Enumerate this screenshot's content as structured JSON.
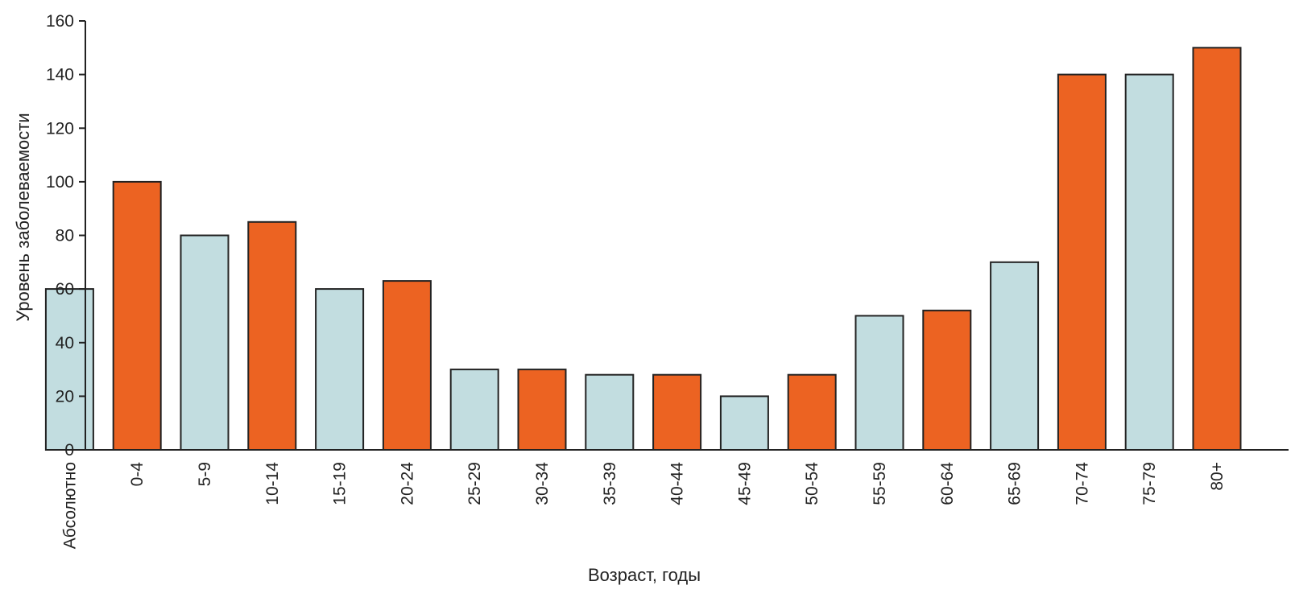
{
  "chart_data": {
    "type": "bar",
    "title": "",
    "xlabel": "Возраст, годы",
    "ylabel": "Уровень заболеваемости",
    "ylim": [
      0,
      160
    ],
    "yticks": [
      0,
      20,
      40,
      60,
      80,
      100,
      120,
      140,
      160
    ],
    "grid": false,
    "legend": "none",
    "categories": [
      "Абсолютно",
      "0-4",
      "5-9",
      "10-14",
      "15-19",
      "20-24",
      "25-29",
      "30-34",
      "35-39",
      "40-44",
      "45-49",
      "50-54",
      "55-59",
      "60-64",
      "65-69",
      "70-74",
      "75-79",
      "80+"
    ],
    "values": [
      60,
      100,
      80,
      85,
      60,
      63,
      30,
      30,
      28,
      28,
      20,
      28,
      50,
      52,
      70,
      140,
      140,
      150
    ],
    "bar_colors": [
      "#c2dde0",
      "#ec6322",
      "#c2dde0",
      "#ec6322",
      "#c2dde0",
      "#ec6322",
      "#c2dde0",
      "#ec6322",
      "#c2dde0",
      "#ec6322",
      "#c2dde0",
      "#ec6322",
      "#c2dde0",
      "#ec6322",
      "#c2dde0",
      "#ec6322",
      "#c2dde0",
      "#ec6322"
    ],
    "colors": {
      "light": "#c2dde0",
      "accent": "#ec6322",
      "stroke": "#222222"
    }
  }
}
